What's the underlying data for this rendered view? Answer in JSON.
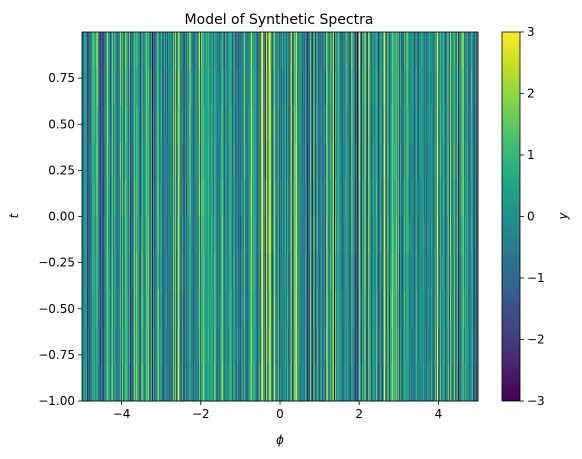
{
  "chart_data": {
    "type": "heatmap",
    "title": "Model of Synthetic Spectra",
    "xlabel": "ϕ",
    "ylabel": "t",
    "xlim": [
      -5,
      5
    ],
    "ylim": [
      -1,
      1
    ],
    "x_ticks": [
      -4,
      -2,
      0,
      2,
      4
    ],
    "y_ticks": [
      -1.0,
      -0.75,
      -0.5,
      -0.25,
      0.0,
      0.25,
      0.5,
      0.75
    ],
    "x_tick_labels": [
      "−4",
      "−2",
      "0",
      "2",
      "4"
    ],
    "y_tick_labels": [
      "−1.00",
      "−0.75",
      "−0.50",
      "−0.25",
      "0.00",
      "0.25",
      "0.50",
      "0.75"
    ],
    "colorbar": {
      "label": "y",
      "range": [
        -3,
        3
      ],
      "ticks": [
        -3,
        -2,
        -1,
        0,
        1,
        2,
        3
      ],
      "tick_labels": [
        "−3",
        "−2",
        "−1",
        "0",
        "1",
        "2",
        "3"
      ],
      "colormap": "viridis"
    },
    "pattern": "dense vertical striations; values vary strongly along ϕ and only weakly along t"
  }
}
